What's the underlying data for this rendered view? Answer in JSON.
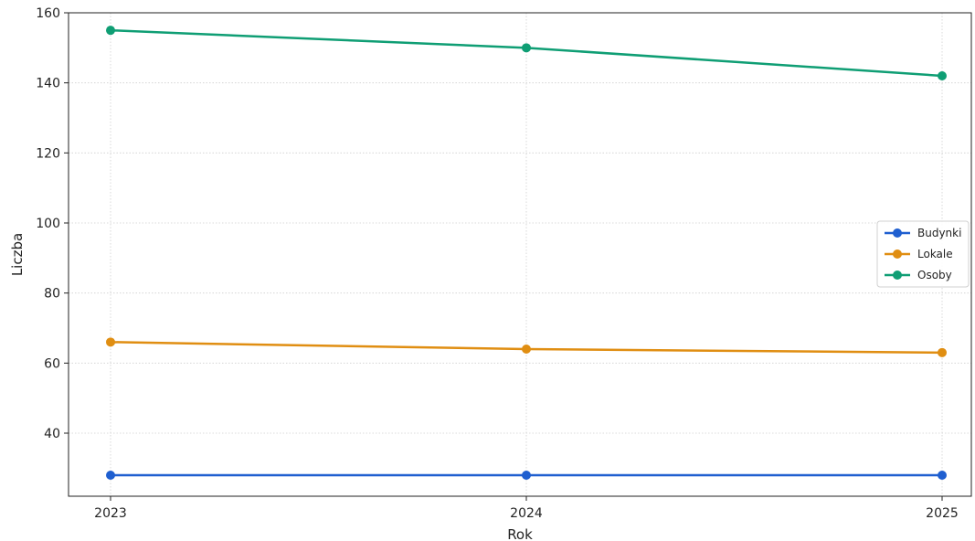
{
  "chart_data": {
    "type": "line",
    "x": [
      2023,
      2024,
      2025
    ],
    "series": [
      {
        "name": "Budynki",
        "color": "#1f5fd0",
        "values": [
          28,
          28,
          28
        ]
      },
      {
        "name": "Lokale",
        "color": "#e08e12",
        "values": [
          66,
          64,
          63
        ]
      },
      {
        "name": "Osoby",
        "color": "#0f9e74",
        "values": [
          155,
          150,
          142
        ]
      }
    ],
    "xlabel": "Rok",
    "ylabel": "Liczba",
    "xticks": [
      "2023",
      "2024",
      "2025"
    ],
    "yticks": [
      40,
      60,
      80,
      100,
      120,
      140,
      160
    ],
    "ylim": [
      22,
      160
    ],
    "grid": true,
    "grid_style": "dotted",
    "legend_position": "center-right",
    "markers": true
  }
}
